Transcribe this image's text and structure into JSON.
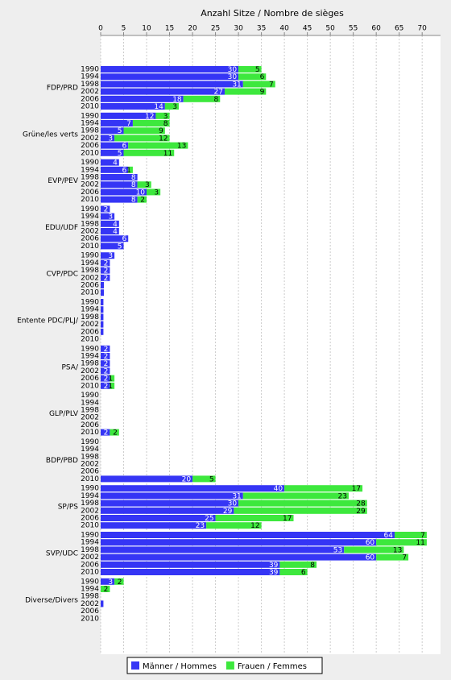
{
  "chart_data": {
    "type": "stacked-barh",
    "title": "Anzahl Sitze / Nombre de sièges",
    "groups": [
      {
        "name": "FDP/PRD",
        "categories": [
          "1990",
          "1994",
          "1998",
          "2002",
          "2006",
          "2010"
        ]
      },
      {
        "name": "Grüne/les verts",
        "categories": [
          "1990",
          "1994",
          "1998",
          "2002",
          "2006",
          "2010"
        ]
      },
      {
        "name": "EVP/PEV",
        "categories": [
          "1990",
          "1994",
          "1998",
          "2002",
          "2006",
          "2010"
        ]
      },
      {
        "name": "EDU/UDF",
        "categories": [
          "1990",
          "1994",
          "1998",
          "2002",
          "2006",
          "2010"
        ]
      },
      {
        "name": "CVP/PDC",
        "categories": [
          "1990",
          "1994",
          "1998",
          "2002",
          "2006",
          "2010"
        ]
      },
      {
        "name": "Entente PDC/PLJ/",
        "categories": [
          "1990",
          "1994",
          "1998",
          "2002",
          "2006",
          "2010"
        ]
      },
      {
        "name": "PSA/",
        "categories": [
          "1990",
          "1994",
          "1998",
          "2002",
          "2006",
          "2010"
        ]
      },
      {
        "name": "GLP/PLV",
        "categories": [
          "1990",
          "1994",
          "1998",
          "2002",
          "2006",
          "2010"
        ]
      },
      {
        "name": "BDP/PBD",
        "categories": [
          "1990",
          "1994",
          "1998",
          "2002",
          "2006",
          "2010"
        ]
      },
      {
        "name": "SP/PS",
        "categories": [
          "1990",
          "1994",
          "1998",
          "2002",
          "2006",
          "2010"
        ]
      },
      {
        "name": "SVP/UDC",
        "categories": [
          "1990",
          "1994",
          "1998",
          "2002",
          "2006",
          "2010"
        ]
      },
      {
        "name": "Diverse/Divers",
        "categories": [
          "1990",
          "1994",
          "1998",
          "2002",
          "2006",
          "2010"
        ]
      }
    ],
    "series": [
      {
        "name": "Männer / Hommes",
        "color": "#3535f5",
        "values": [
          30,
          30,
          31,
          27,
          18,
          14,
          12,
          7,
          5,
          3,
          6,
          5,
          4,
          6,
          8,
          8,
          10,
          8,
          2,
          3,
          4,
          4,
          6,
          5,
          3,
          2,
          2,
          2,
          0.7,
          0.7,
          0.6,
          0.6,
          0.6,
          0.6,
          0.6,
          null,
          2,
          2,
          2,
          2,
          2,
          2,
          null,
          null,
          null,
          null,
          null,
          2,
          null,
          null,
          null,
          null,
          null,
          20,
          40,
          31,
          30,
          29,
          25,
          23,
          64,
          60,
          53,
          60,
          39,
          39,
          3,
          null,
          null,
          0.6,
          null,
          null
        ]
      },
      {
        "name": "Frauen / Femmes",
        "color": "#3de83d",
        "values": [
          5,
          6,
          7,
          9,
          8,
          3,
          3,
          8,
          9,
          12,
          13,
          11,
          null,
          1,
          null,
          3,
          3,
          2,
          null,
          null,
          null,
          null,
          null,
          null,
          null,
          null,
          null,
          null,
          null,
          null,
          null,
          null,
          null,
          null,
          null,
          null,
          null,
          null,
          null,
          null,
          1,
          1,
          null,
          null,
          null,
          null,
          null,
          2,
          null,
          null,
          null,
          null,
          null,
          5,
          17,
          23,
          28,
          29,
          17,
          12,
          7,
          11,
          13,
          7,
          8,
          6,
          2,
          2,
          null,
          null,
          null,
          null
        ]
      }
    ],
    "xlim": [
      0,
      74
    ],
    "xticks": [
      0,
      5,
      10,
      15,
      20,
      25,
      30,
      35,
      40,
      45,
      50,
      55,
      60,
      65,
      70
    ],
    "grid": true
  }
}
